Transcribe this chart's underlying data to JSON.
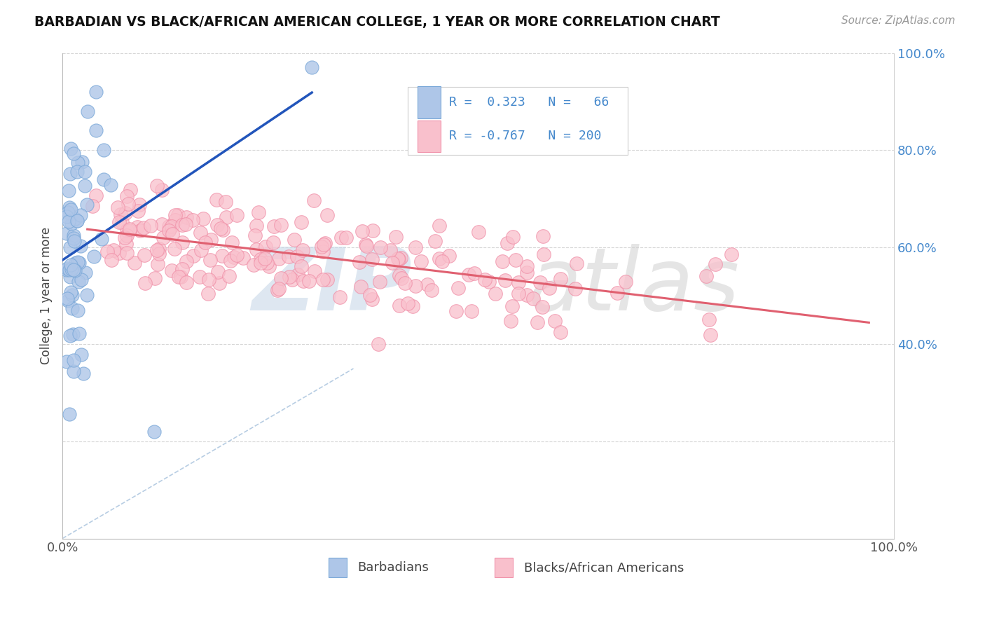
{
  "title": "BARBADIAN VS BLACK/AFRICAN AMERICAN COLLEGE, 1 YEAR OR MORE CORRELATION CHART",
  "source": "Source: ZipAtlas.com",
  "ylabel": "College, 1 year or more",
  "xlim": [
    0.0,
    1.0
  ],
  "ylim": [
    0.0,
    1.0
  ],
  "color_blue_fill": "#aec6e8",
  "color_blue_edge": "#7aa8d8",
  "color_pink_fill": "#f9c0cc",
  "color_pink_edge": "#f090a8",
  "color_blue_line": "#2255bb",
  "color_pink_line": "#e06070",
  "color_diag": "#b0c8e0",
  "background_color": "#ffffff",
  "grid_color": "#cccccc",
  "tick_color": "#4488cc",
  "watermark_zip_color": "#c8d8e8",
  "watermark_atlas_color": "#d0d0d0"
}
